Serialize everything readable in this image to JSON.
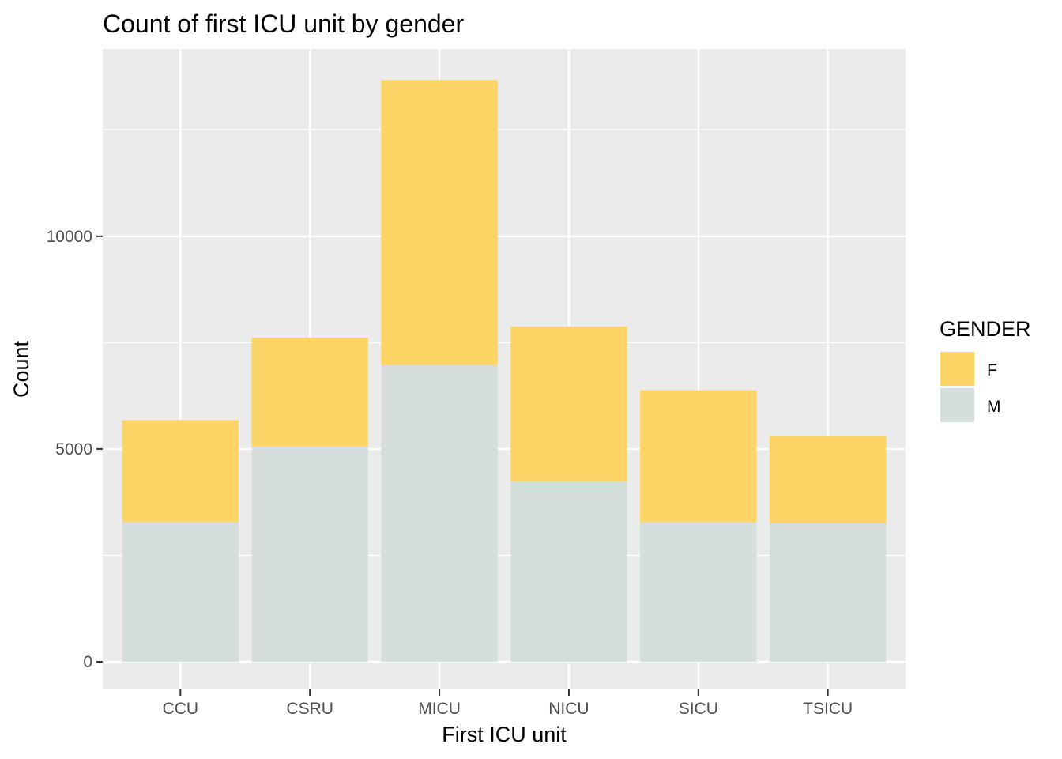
{
  "chart_data": {
    "type": "bar",
    "stacked": true,
    "title": "Count of first ICU unit by gender",
    "xlabel": "First ICU unit",
    "ylabel": "Count",
    "categories": [
      "CCU",
      "CSRU",
      "MICU",
      "NICU",
      "SICU",
      "TSICU"
    ],
    "series": [
      {
        "name": "F",
        "values": [
          2400,
          2560,
          6700,
          3640,
          3100,
          2040
        ],
        "color": "#FDD466"
      },
      {
        "name": "M",
        "values": [
          3280,
          5060,
          6970,
          4240,
          3280,
          3260
        ],
        "color": "#D5DEDD"
      }
    ],
    "ylim": [
      -650,
      14400
    ],
    "yticks": [
      0,
      5000,
      10000
    ],
    "yticks_labels": [
      "0",
      "5000",
      "10000"
    ],
    "yminor": [
      2500,
      7500,
      12500
    ],
    "grid": true,
    "legend": {
      "title": "GENDER",
      "position": "right"
    },
    "panel_color": "#EBEBEB"
  }
}
